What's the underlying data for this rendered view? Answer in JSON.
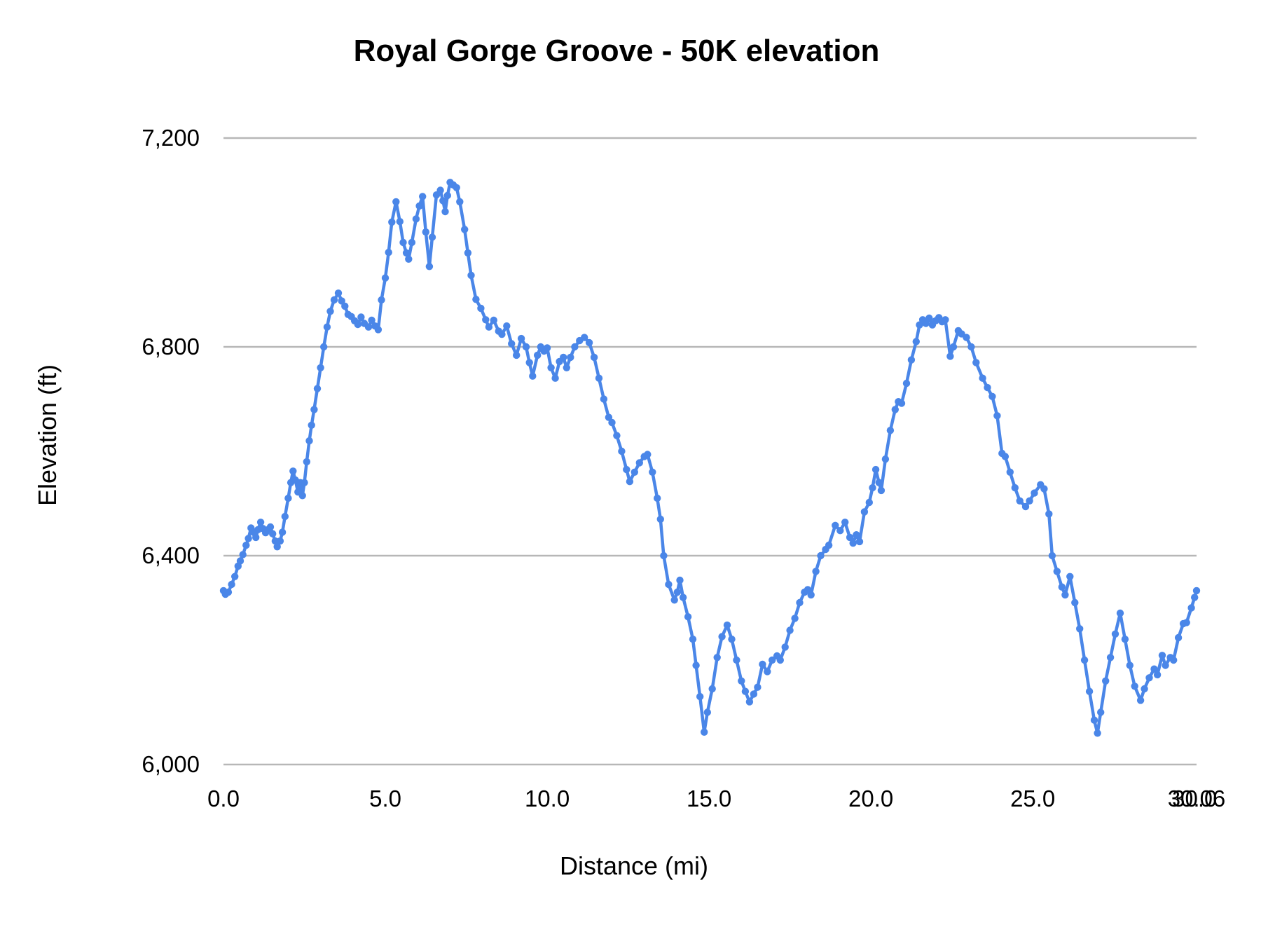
{
  "chart_data": {
    "type": "line",
    "title": "Royal Gorge Groove - 50K elevation",
    "xlabel": "Distance (mi)",
    "ylabel": "Elevation (ft)",
    "xlim": [
      0,
      30.06
    ],
    "ylim": [
      6000,
      7200
    ],
    "grid": true,
    "legend": "none",
    "line_color": "#4a86e8",
    "grid_color": "#b7b7b7",
    "text_color": "#000000",
    "background_color": "#ffffff",
    "x_tick_labels": [
      "0.0",
      "5.0",
      "10.0",
      "15.0",
      "20.0",
      "25.0",
      "30.0",
      "30.06"
    ],
    "x_tick_values": [
      0,
      5,
      10,
      15,
      20,
      25,
      30,
      30.06
    ],
    "y_tick_labels": [
      "6,000",
      "6,400",
      "6,800",
      "7,200"
    ],
    "y_tick_values": [
      6000,
      6400,
      6800,
      7200
    ],
    "series": [
      {
        "name": "elevation",
        "marker": "circle",
        "x": [
          0,
          0.06,
          0.15,
          0.25,
          0.35,
          0.45,
          0.52,
          0.6,
          0.7,
          0.77,
          0.85,
          0.92,
          1.0,
          1.07,
          1.15,
          1.22,
          1.3,
          1.38,
          1.45,
          1.52,
          1.6,
          1.66,
          1.75,
          1.82,
          1.9,
          2.0,
          2.08,
          2.15,
          2.22,
          2.3,
          2.37,
          2.44,
          2.5,
          2.57,
          2.65,
          2.72,
          2.8,
          2.9,
          3.0,
          3.1,
          3.2,
          3.3,
          3.42,
          3.55,
          3.65,
          3.75,
          3.85,
          3.95,
          4.05,
          4.15,
          4.25,
          4.35,
          4.48,
          4.58,
          4.68,
          4.78,
          4.88,
          5.0,
          5.1,
          5.2,
          5.33,
          5.45,
          5.55,
          5.65,
          5.72,
          5.82,
          5.95,
          6.05,
          6.15,
          6.25,
          6.36,
          6.45,
          6.58,
          6.7,
          6.78,
          6.85,
          6.92,
          7.0,
          7.1,
          7.2,
          7.3,
          7.45,
          7.55,
          7.65,
          7.8,
          7.95,
          8.1,
          8.2,
          8.35,
          8.5,
          8.6,
          8.75,
          8.9,
          9.05,
          9.2,
          9.35,
          9.45,
          9.55,
          9.7,
          9.8,
          9.9,
          10.0,
          10.12,
          10.25,
          10.38,
          10.5,
          10.6,
          10.72,
          10.85,
          11.0,
          11.15,
          11.3,
          11.45,
          11.6,
          11.75,
          11.9,
          12.0,
          12.15,
          12.3,
          12.45,
          12.55,
          12.7,
          12.85,
          13.0,
          13.1,
          13.25,
          13.4,
          13.5,
          13.6,
          13.75,
          13.93,
          14.02,
          14.1,
          14.2,
          14.35,
          14.5,
          14.6,
          14.72,
          14.85,
          14.95,
          15.1,
          15.25,
          15.4,
          15.56,
          15.7,
          15.85,
          16.0,
          16.12,
          16.25,
          16.38,
          16.5,
          16.65,
          16.8,
          16.95,
          17.1,
          17.2,
          17.35,
          17.5,
          17.65,
          17.8,
          17.95,
          18.05,
          18.15,
          18.3,
          18.45,
          18.6,
          18.7,
          18.9,
          19.05,
          19.2,
          19.35,
          19.45,
          19.55,
          19.65,
          19.8,
          19.95,
          20.05,
          20.15,
          20.25,
          20.32,
          20.45,
          20.6,
          20.75,
          20.85,
          20.95,
          21.1,
          21.25,
          21.4,
          21.5,
          21.6,
          21.7,
          21.8,
          21.9,
          22.0,
          22.1,
          22.2,
          22.3,
          22.45,
          22.55,
          22.7,
          22.8,
          22.95,
          23.1,
          23.25,
          23.45,
          23.6,
          23.75,
          23.9,
          24.05,
          24.15,
          24.3,
          24.45,
          24.6,
          24.78,
          24.9,
          25.05,
          25.24,
          25.35,
          25.5,
          25.6,
          25.75,
          25.9,
          26.0,
          26.15,
          26.3,
          26.45,
          26.6,
          26.75,
          26.9,
          27.0,
          27.1,
          27.25,
          27.4,
          27.55,
          27.7,
          27.85,
          28.0,
          28.15,
          28.33,
          28.45,
          28.6,
          28.75,
          28.85,
          29.0,
          29.1,
          29.25,
          29.35,
          29.5,
          29.65,
          29.75,
          29.9,
          30.0,
          30.06
        ],
        "y": [
          6333,
          6326,
          6330,
          6345,
          6360,
          6380,
          6390,
          6402,
          6420,
          6433,
          6453,
          6445,
          6435,
          6450,
          6464,
          6452,
          6444,
          6450,
          6455,
          6442,
          6428,
          6417,
          6428,
          6445,
          6475,
          6510,
          6540,
          6562,
          6545,
          6522,
          6540,
          6515,
          6540,
          6580,
          6620,
          6650,
          6680,
          6720,
          6760,
          6800,
          6838,
          6868,
          6890,
          6903,
          6888,
          6878,
          6862,
          6858,
          6850,
          6843,
          6857,
          6845,
          6838,
          6851,
          6840,
          6833,
          6890,
          6932,
          6981,
          7039,
          7078,
          7040,
          7000,
          6980,
          6968,
          7000,
          7045,
          7070,
          7088,
          7020,
          6954,
          7010,
          7091,
          7100,
          7080,
          7059,
          7090,
          7115,
          7110,
          7105,
          7078,
          7025,
          6980,
          6937,
          6891,
          6874,
          6852,
          6838,
          6851,
          6830,
          6824,
          6840,
          6806,
          6784,
          6816,
          6800,
          6770,
          6744,
          6784,
          6800,
          6792,
          6798,
          6760,
          6740,
          6772,
          6780,
          6760,
          6780,
          6800,
          6812,
          6818,
          6808,
          6780,
          6740,
          6700,
          6665,
          6655,
          6630,
          6600,
          6565,
          6542,
          6560,
          6578,
          6590,
          6594,
          6560,
          6510,
          6470,
          6400,
          6345,
          6315,
          6330,
          6353,
          6320,
          6283,
          6240,
          6190,
          6130,
          6062,
          6100,
          6145,
          6205,
          6245,
          6267,
          6240,
          6200,
          6160,
          6140,
          6120,
          6135,
          6148,
          6192,
          6178,
          6200,
          6208,
          6200,
          6225,
          6257,
          6280,
          6310,
          6330,
          6335,
          6325,
          6370,
          6400,
          6412,
          6420,
          6458,
          6448,
          6464,
          6435,
          6424,
          6440,
          6427,
          6484,
          6502,
          6530,
          6565,
          6540,
          6525,
          6585,
          6640,
          6680,
          6695,
          6692,
          6730,
          6775,
          6810,
          6842,
          6852,
          6845,
          6855,
          6842,
          6850,
          6856,
          6848,
          6852,
          6782,
          6800,
          6831,
          6825,
          6818,
          6800,
          6770,
          6740,
          6722,
          6705,
          6668,
          6596,
          6590,
          6560,
          6530,
          6505,
          6494,
          6505,
          6520,
          6536,
          6528,
          6480,
          6400,
          6370,
          6340,
          6325,
          6360,
          6310,
          6260,
          6200,
          6140,
          6085,
          6060,
          6100,
          6160,
          6205,
          6250,
          6290,
          6240,
          6190,
          6150,
          6123,
          6145,
          6166,
          6183,
          6172,
          6209,
          6190,
          6205,
          6200,
          6243,
          6270,
          6272,
          6300,
          6320,
          6333
        ]
      }
    ]
  }
}
